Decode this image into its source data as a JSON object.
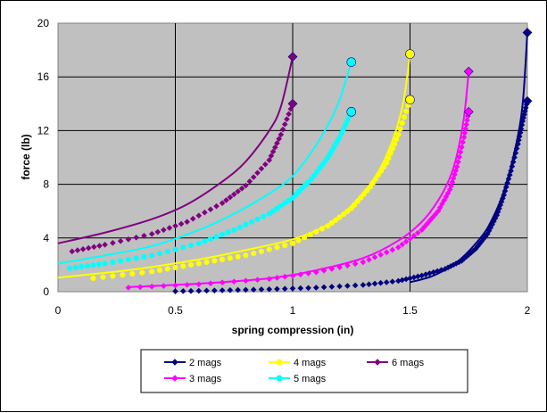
{
  "chart_data": {
    "type": "scatter",
    "title": "",
    "xlabel": "spring compression (in)",
    "ylabel": "force (lb)",
    "xlim": [
      0,
      2
    ],
    "ylim": [
      0,
      20
    ],
    "x_ticks": [
      0,
      0.5,
      1,
      1.5,
      2
    ],
    "x_tick_labels": [
      "0",
      "0.5",
      "1",
      "1.5",
      "2"
    ],
    "y_ticks": [
      0,
      4,
      8,
      12,
      16,
      20
    ],
    "y_tick_labels": [
      "0",
      "4",
      "8",
      "12",
      "16",
      "20"
    ],
    "grid": true,
    "plot_background": "#c0c0c0",
    "legend_position": "bottom",
    "series": [
      {
        "name": "2 mags",
        "color": "#000080",
        "marker": "diamond",
        "line": [
          [
            1.5,
            0.7
          ],
          [
            1.6,
            1.2
          ],
          [
            1.7,
            2.2
          ],
          [
            1.8,
            4.0
          ],
          [
            1.85,
            5.4
          ],
          [
            1.9,
            7.5
          ],
          [
            1.95,
            10.8
          ],
          [
            1.98,
            14.0
          ],
          [
            2.0,
            19.3
          ]
        ],
        "points": [
          [
            0.5,
            0.03
          ],
          [
            0.7,
            0.1
          ],
          [
            0.9,
            0.18
          ],
          [
            1.1,
            0.3
          ],
          [
            1.3,
            0.5
          ],
          [
            1.45,
            0.8
          ],
          [
            1.55,
            1.2
          ],
          [
            1.65,
            1.7
          ],
          [
            1.72,
            2.3
          ],
          [
            1.78,
            3.2
          ],
          [
            1.83,
            4.3
          ],
          [
            1.87,
            5.7
          ],
          [
            1.9,
            7.2
          ],
          [
            1.93,
            9.0
          ],
          [
            1.96,
            11.0
          ],
          [
            1.98,
            12.7
          ],
          [
            2.0,
            14.2
          ]
        ],
        "end_markers": [
          [
            2.0,
            19.3
          ],
          [
            2.0,
            14.2
          ]
        ]
      },
      {
        "name": "3 mags",
        "color": "#ff00ff",
        "marker": "diamond",
        "line": [
          [
            0.3,
            0.35
          ],
          [
            0.6,
            0.6
          ],
          [
            0.9,
            1.0
          ],
          [
            1.1,
            1.6
          ],
          [
            1.3,
            2.5
          ],
          [
            1.45,
            3.8
          ],
          [
            1.55,
            5.2
          ],
          [
            1.62,
            6.8
          ],
          [
            1.67,
            8.5
          ],
          [
            1.7,
            10.2
          ],
          [
            1.73,
            13.0
          ],
          [
            1.75,
            16.4
          ]
        ],
        "points": [
          [
            0.3,
            0.3
          ],
          [
            0.6,
            0.55
          ],
          [
            0.9,
            0.95
          ],
          [
            1.1,
            1.45
          ],
          [
            1.3,
            2.2
          ],
          [
            1.45,
            3.3
          ],
          [
            1.55,
            4.6
          ],
          [
            1.62,
            6.0
          ],
          [
            1.67,
            7.6
          ],
          [
            1.7,
            9.3
          ],
          [
            1.73,
            11.5
          ],
          [
            1.75,
            13.4
          ]
        ],
        "end_markers": [
          [
            1.75,
            16.4
          ],
          [
            1.75,
            13.4
          ]
        ]
      },
      {
        "name": "4 mags",
        "color": "#ffff00",
        "marker": "circle",
        "line": [
          [
            0.0,
            1.05
          ],
          [
            0.3,
            1.6
          ],
          [
            0.6,
            2.4
          ],
          [
            0.8,
            3.1
          ],
          [
            1.0,
            3.9
          ],
          [
            1.15,
            5.0
          ],
          [
            1.25,
            6.4
          ],
          [
            1.35,
            8.5
          ],
          [
            1.42,
            11.0
          ],
          [
            1.47,
            14.0
          ],
          [
            1.5,
            17.7
          ]
        ],
        "points": [
          [
            0.15,
            1.0
          ],
          [
            0.4,
            1.5
          ],
          [
            0.6,
            2.1
          ],
          [
            0.8,
            2.7
          ],
          [
            1.0,
            3.6
          ],
          [
            1.15,
            4.9
          ],
          [
            1.25,
            6.2
          ],
          [
            1.33,
            7.8
          ],
          [
            1.4,
            9.6
          ],
          [
            1.45,
            11.7
          ],
          [
            1.5,
            14.3
          ]
        ],
        "end_markers": [
          [
            1.5,
            17.7
          ],
          [
            1.5,
            14.3
          ]
        ]
      },
      {
        "name": "5 mags",
        "color": "#00ffff",
        "marker": "circle",
        "line": [
          [
            0.0,
            2.1
          ],
          [
            0.2,
            2.7
          ],
          [
            0.4,
            3.4
          ],
          [
            0.6,
            4.6
          ],
          [
            0.75,
            5.8
          ],
          [
            0.9,
            7.3
          ],
          [
            1.0,
            8.6
          ],
          [
            1.08,
            10.4
          ],
          [
            1.15,
            12.4
          ],
          [
            1.2,
            14.3
          ],
          [
            1.25,
            17.1
          ]
        ],
        "points": [
          [
            0.05,
            1.75
          ],
          [
            0.2,
            2.1
          ],
          [
            0.4,
            2.7
          ],
          [
            0.6,
            3.6
          ],
          [
            0.75,
            4.6
          ],
          [
            0.9,
            5.8
          ],
          [
            1.0,
            7.0
          ],
          [
            1.08,
            8.4
          ],
          [
            1.15,
            10.0
          ],
          [
            1.2,
            11.5
          ],
          [
            1.25,
            13.4
          ]
        ],
        "end_markers": [
          [
            1.25,
            17.1
          ],
          [
            1.25,
            13.4
          ]
        ]
      },
      {
        "name": "6 mags",
        "color": "#800080",
        "marker": "diamond",
        "line": [
          [
            0.0,
            3.6
          ],
          [
            0.2,
            4.4
          ],
          [
            0.4,
            5.4
          ],
          [
            0.55,
            6.5
          ],
          [
            0.7,
            8.2
          ],
          [
            0.8,
            9.7
          ],
          [
            0.9,
            12.0
          ],
          [
            0.95,
            13.8
          ],
          [
            1.0,
            17.5
          ]
        ],
        "points": [
          [
            0.06,
            3.0
          ],
          [
            0.2,
            3.5
          ],
          [
            0.4,
            4.3
          ],
          [
            0.55,
            5.2
          ],
          [
            0.7,
            6.6
          ],
          [
            0.8,
            7.9
          ],
          [
            0.9,
            9.8
          ],
          [
            0.95,
            11.7
          ],
          [
            1.0,
            14.0
          ]
        ],
        "end_markers": [
          [
            1.0,
            17.5
          ],
          [
            1.0,
            14.0
          ]
        ]
      }
    ]
  }
}
